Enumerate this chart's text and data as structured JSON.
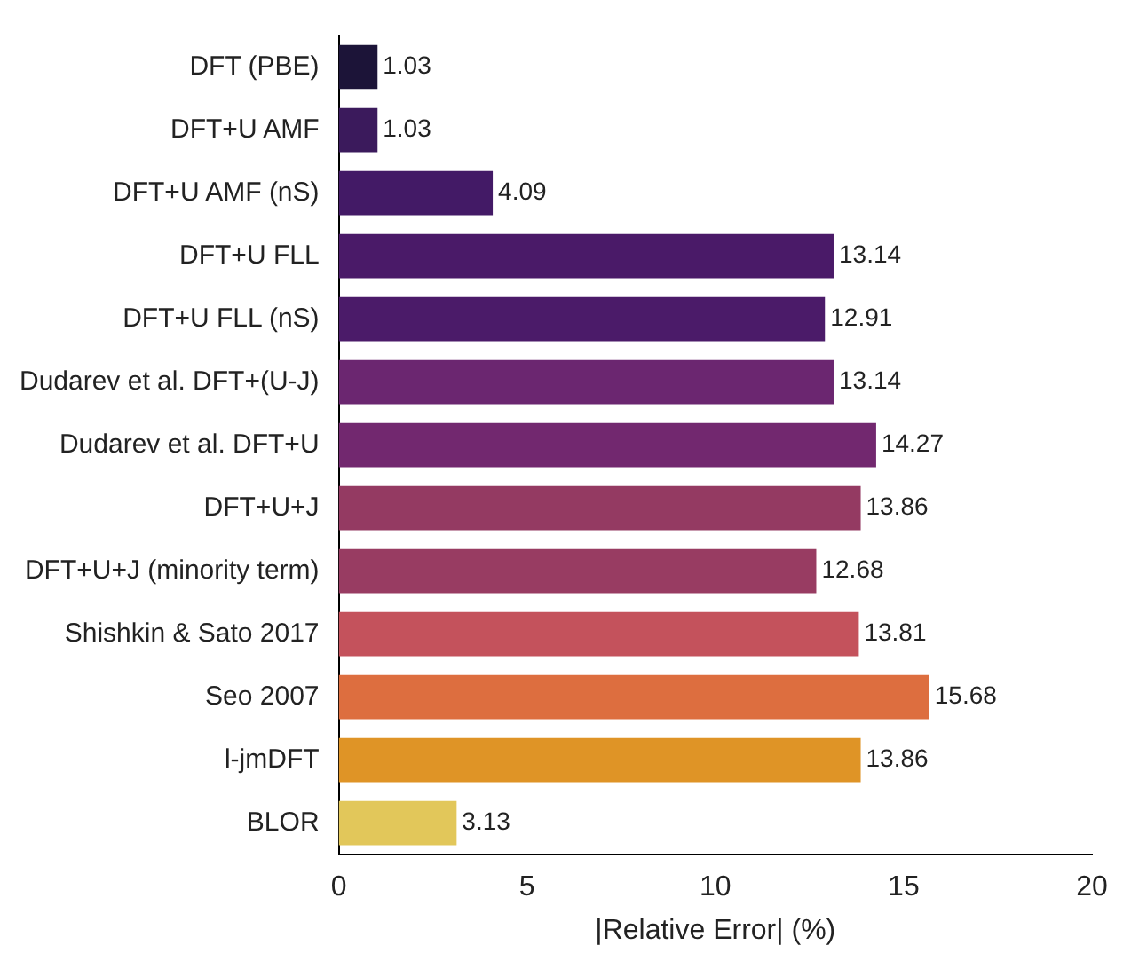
{
  "chart_data": {
    "type": "bar",
    "orientation": "horizontal",
    "xlabel": "|Relative Error| (%)",
    "categories": [
      "DFT (PBE)",
      "DFT+U AMF",
      "DFT+U AMF (nS)",
      "DFT+U FLL",
      "DFT+U FLL (nS)",
      "Dudarev et al. DFT+(U-J)",
      "Dudarev et al. DFT+U",
      "DFT+U+J",
      "DFT+U+J (minority term)",
      "Shishkin & Sato 2017",
      "Seo 2007",
      "l-jmDFT",
      "BLOR"
    ],
    "values": [
      1.03,
      1.03,
      4.09,
      13.14,
      12.91,
      13.14,
      14.27,
      13.86,
      12.68,
      13.81,
      15.68,
      13.86,
      3.13
    ],
    "colors": [
      "#1c1438",
      "#3b1a5c",
      "#431a66",
      "#4a1a68",
      "#4b1b69",
      "#6b2670",
      "#72286f",
      "#943a62",
      "#983c62",
      "#c4525c",
      "#dd6e3f",
      "#df9426",
      "#e2c75a"
    ],
    "data_labels": true,
    "xlim": [
      0,
      20
    ],
    "xticks": [
      0,
      5,
      10,
      15,
      20
    ],
    "grid": false,
    "legend": false
  }
}
